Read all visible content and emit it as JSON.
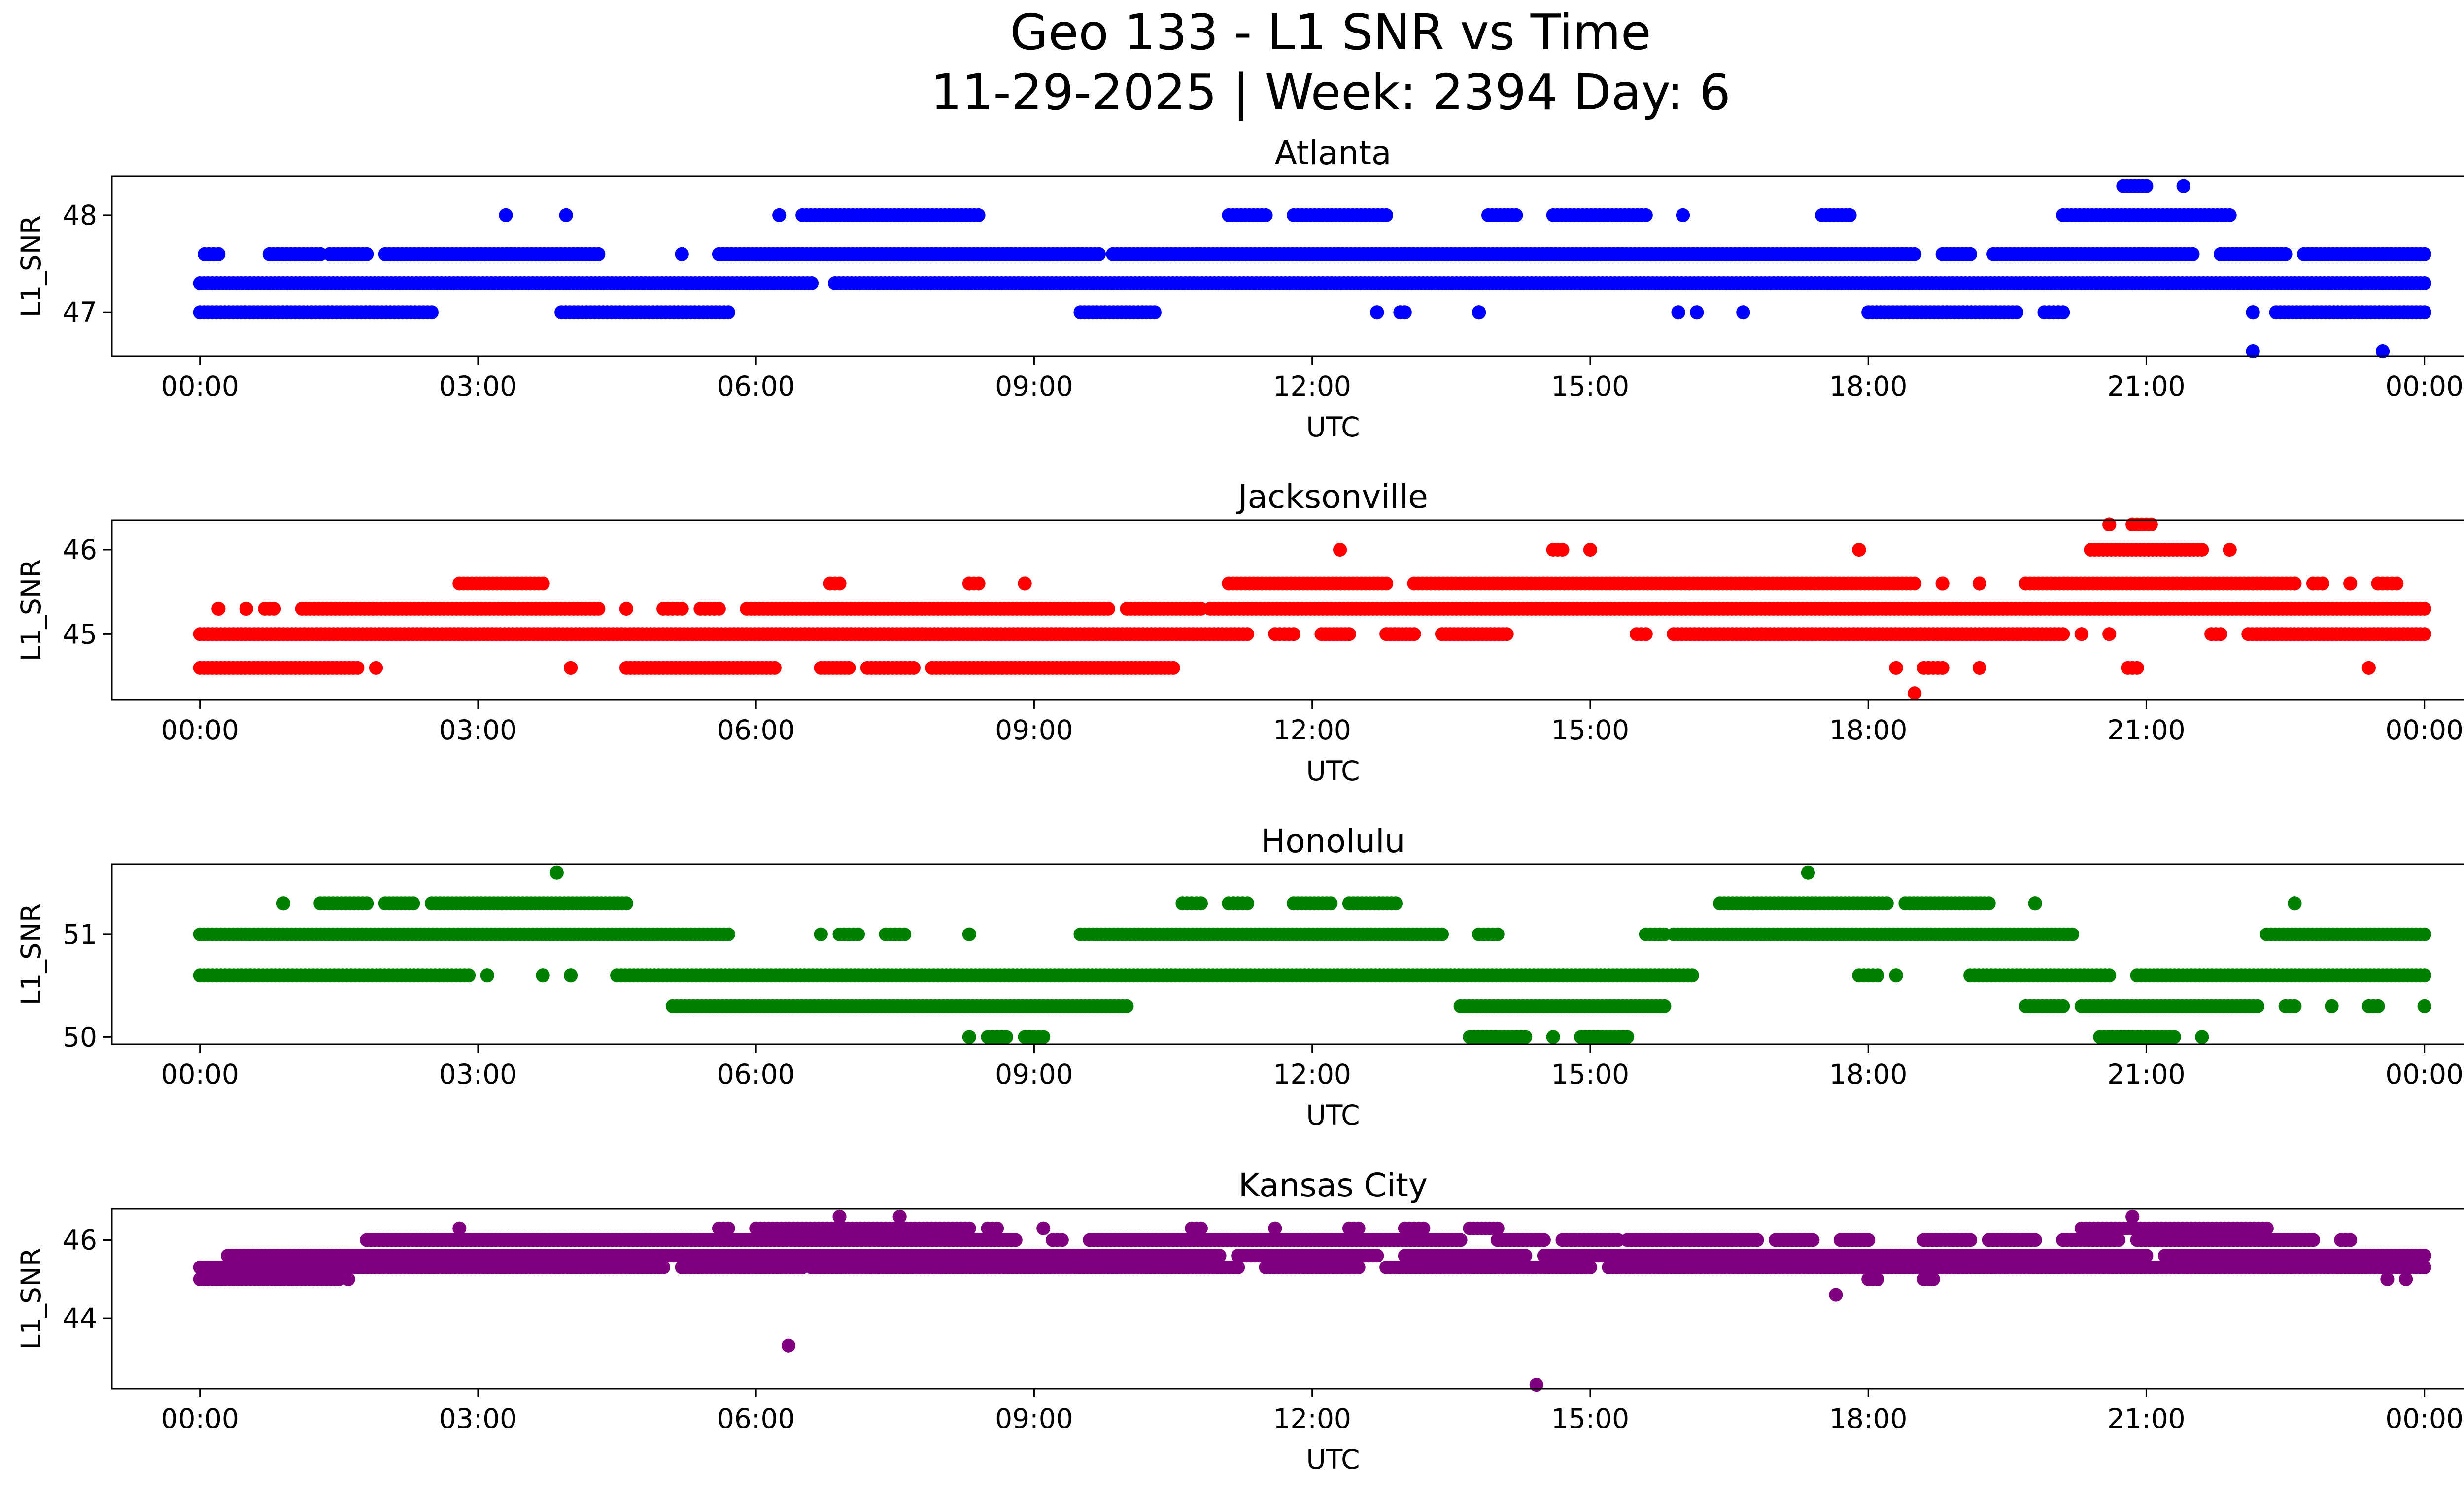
{
  "figure": {
    "title_line1": "Geo 133 - L1 SNR vs Time",
    "title_line2": "11-29-2025 | Week: 2394 Day: 6"
  },
  "chart_data": [
    {
      "type": "scatter",
      "title": "Atlanta",
      "xlabel": "UTC",
      "ylabel": "L1_SNR",
      "color": "#0000ff",
      "xlim_hours": [
        -0.95,
        25.4
      ],
      "ylim": [
        46.55,
        48.4
      ],
      "yticks": [
        47,
        48
      ],
      "xtick_labels": [
        "00:00",
        "03:00",
        "06:00",
        "09:00",
        "12:00",
        "15:00",
        "18:00",
        "21:00",
        "00:00"
      ],
      "levels": [
        {
          "y": 47.0,
          "segments": [
            [
              0.0,
              2.5
            ],
            [
              3.9,
              5.7
            ],
            [
              9.5,
              10.3
            ],
            [
              12.7,
              12.7
            ],
            [
              12.95,
              13.0
            ],
            [
              13.8,
              13.8
            ],
            [
              15.95,
              15.95
            ],
            [
              16.15,
              16.15
            ],
            [
              16.65,
              16.65
            ],
            [
              18.0,
              19.6
            ],
            [
              19.9,
              20.1
            ],
            [
              22.15,
              22.15
            ],
            [
              22.4,
              24.0
            ]
          ]
        },
        {
          "y": 47.3,
          "segments": [
            [
              0.0,
              6.6
            ],
            [
              6.85,
              24.0
            ]
          ]
        },
        {
          "y": 47.6,
          "segments": [
            [
              0.05,
              0.2
            ],
            [
              0.75,
              1.3
            ],
            [
              1.4,
              1.8
            ],
            [
              2.0,
              4.3
            ],
            [
              5.2,
              5.2
            ],
            [
              5.6,
              9.7
            ],
            [
              9.85,
              18.5
            ],
            [
              18.8,
              19.1
            ],
            [
              19.35,
              21.5
            ],
            [
              21.8,
              22.5
            ],
            [
              22.7,
              24.0
            ]
          ]
        },
        {
          "y": 48.0,
          "segments": [
            [
              3.3,
              3.3
            ],
            [
              3.95,
              3.95
            ],
            [
              6.25,
              6.25
            ],
            [
              6.5,
              8.4
            ],
            [
              11.1,
              11.5
            ],
            [
              11.8,
              12.8
            ],
            [
              13.9,
              14.2
            ],
            [
              14.6,
              15.6
            ],
            [
              16.0,
              16.0
            ],
            [
              17.5,
              17.8
            ],
            [
              20.1,
              21.9
            ]
          ]
        },
        {
          "y": 48.3,
          "segments": [
            [
              20.75,
              21.0
            ],
            [
              21.4,
              21.4
            ]
          ]
        },
        {
          "y": 46.6,
          "segments": [
            [
              22.15,
              22.15
            ],
            [
              23.55,
              23.55
            ]
          ]
        }
      ]
    },
    {
      "type": "scatter",
      "title": "Jacksonville",
      "xlabel": "UTC",
      "ylabel": "L1_SNR",
      "color": "#ff0000",
      "xlim_hours": [
        -0.95,
        25.4
      ],
      "ylim": [
        44.22,
        46.35
      ],
      "yticks": [
        45,
        46
      ],
      "xtick_labels": [
        "00:00",
        "03:00",
        "06:00",
        "09:00",
        "12:00",
        "15:00",
        "18:00",
        "21:00",
        "00:00"
      ],
      "levels": [
        {
          "y": 44.6,
          "segments": [
            [
              0.0,
              1.7
            ],
            [
              1.9,
              1.9
            ],
            [
              4.0,
              4.0
            ],
            [
              4.6,
              6.2
            ],
            [
              6.7,
              7.0
            ],
            [
              7.2,
              7.7
            ],
            [
              7.9,
              10.5
            ],
            [
              18.3,
              18.3
            ],
            [
              18.6,
              18.8
            ],
            [
              19.2,
              19.2
            ],
            [
              20.8,
              20.9
            ],
            [
              23.4,
              23.4
            ]
          ]
        },
        {
          "y": 44.3,
          "segments": [
            [
              18.5,
              18.5
            ]
          ]
        },
        {
          "y": 45.0,
          "segments": [
            [
              0.0,
              11.3
            ],
            [
              11.6,
              11.8
            ],
            [
              12.1,
              12.4
            ],
            [
              12.8,
              13.1
            ],
            [
              13.4,
              14.1
            ],
            [
              15.5,
              15.6
            ],
            [
              15.9,
              20.1
            ],
            [
              20.3,
              20.3
            ],
            [
              20.6,
              20.6
            ],
            [
              21.7,
              21.8
            ],
            [
              22.1,
              24.0
            ]
          ]
        },
        {
          "y": 45.3,
          "segments": [
            [
              0.2,
              0.2
            ],
            [
              0.5,
              0.5
            ],
            [
              0.7,
              0.8
            ],
            [
              1.1,
              4.3
            ],
            [
              4.6,
              4.6
            ],
            [
              5.0,
              5.2
            ],
            [
              5.4,
              5.6
            ],
            [
              5.9,
              9.8
            ],
            [
              10.0,
              10.8
            ],
            [
              10.9,
              24.0
            ]
          ]
        },
        {
          "y": 45.6,
          "segments": [
            [
              2.8,
              3.7
            ],
            [
              6.8,
              6.9
            ],
            [
              8.3,
              8.4
            ],
            [
              8.9,
              8.9
            ],
            [
              11.1,
              12.8
            ],
            [
              13.1,
              18.5
            ],
            [
              18.8,
              18.8
            ],
            [
              19.2,
              19.2
            ],
            [
              19.7,
              22.6
            ],
            [
              22.8,
              22.9
            ],
            [
              23.2,
              23.2
            ],
            [
              23.5,
              23.7
            ]
          ]
        },
        {
          "y": 46.0,
          "segments": [
            [
              12.3,
              12.3
            ],
            [
              14.6,
              14.7
            ],
            [
              15.0,
              15.0
            ],
            [
              17.9,
              17.9
            ],
            [
              20.4,
              21.6
            ],
            [
              21.9,
              21.9
            ]
          ]
        },
        {
          "y": 46.3,
          "segments": [
            [
              20.6,
              20.6
            ],
            [
              20.85,
              21.05
            ]
          ]
        }
      ]
    },
    {
      "type": "scatter",
      "title": "Honolulu",
      "xlabel": "UTC",
      "ylabel": "L1_SNR",
      "color": "#008000",
      "xlim_hours": [
        -0.95,
        25.4
      ],
      "ylim": [
        49.93,
        51.68
      ],
      "yticks": [
        50,
        51
      ],
      "xtick_labels": [
        "00:00",
        "03:00",
        "06:00",
        "09:00",
        "12:00",
        "15:00",
        "18:00",
        "21:00",
        "00:00"
      ],
      "levels": [
        {
          "y": 50.0,
          "segments": [
            [
              8.3,
              8.3
            ],
            [
              8.5,
              8.7
            ],
            [
              8.9,
              9.1
            ],
            [
              13.7,
              14.3
            ],
            [
              14.6,
              14.6
            ],
            [
              14.9,
              15.4
            ],
            [
              20.5,
              21.3
            ],
            [
              21.6,
              21.6
            ]
          ]
        },
        {
          "y": 50.3,
          "segments": [
            [
              5.1,
              10.0
            ],
            [
              13.6,
              15.8
            ],
            [
              19.7,
              20.1
            ],
            [
              20.3,
              22.2
            ],
            [
              22.5,
              22.6
            ],
            [
              23.0,
              23.0
            ],
            [
              23.4,
              23.5
            ],
            [
              24.0,
              24.0
            ]
          ]
        },
        {
          "y": 50.6,
          "segments": [
            [
              0.0,
              2.9
            ],
            [
              3.1,
              3.1
            ],
            [
              3.7,
              3.7
            ],
            [
              4.0,
              4.0
            ],
            [
              4.5,
              16.1
            ],
            [
              17.9,
              18.1
            ],
            [
              18.3,
              18.3
            ],
            [
              19.1,
              20.6
            ],
            [
              20.9,
              24.0
            ]
          ]
        },
        {
          "y": 51.0,
          "segments": [
            [
              0.0,
              5.7
            ],
            [
              6.7,
              6.7
            ],
            [
              6.9,
              7.1
            ],
            [
              7.4,
              7.6
            ],
            [
              8.3,
              8.3
            ],
            [
              9.5,
              13.4
            ],
            [
              13.8,
              14.0
            ],
            [
              15.6,
              15.8
            ],
            [
              15.9,
              20.2
            ],
            [
              22.3,
              24.0
            ]
          ]
        },
        {
          "y": 51.3,
          "segments": [
            [
              0.9,
              0.9
            ],
            [
              1.3,
              1.8
            ],
            [
              2.0,
              2.3
            ],
            [
              2.5,
              4.6
            ],
            [
              10.6,
              10.8
            ],
            [
              11.1,
              11.3
            ],
            [
              11.8,
              12.2
            ],
            [
              12.4,
              12.9
            ],
            [
              16.4,
              18.2
            ],
            [
              18.4,
              19.3
            ],
            [
              19.8,
              19.8
            ],
            [
              22.6,
              22.6
            ]
          ]
        },
        {
          "y": 51.6,
          "segments": [
            [
              3.85,
              3.85
            ],
            [
              17.35,
              17.35
            ]
          ]
        }
      ]
    },
    {
      "type": "scatter",
      "title": "Kansas City",
      "xlabel": "UTC",
      "ylabel": "L1_SNR",
      "color": "#800080",
      "xlim_hours": [
        -0.95,
        25.4
      ],
      "ylim": [
        42.2,
        46.8
      ],
      "yticks": [
        44,
        46
      ],
      "xtick_labels": [
        "00:00",
        "03:00",
        "06:00",
        "09:00",
        "12:00",
        "15:00",
        "18:00",
        "21:00",
        "00:00"
      ],
      "levels": [
        {
          "y": 45.0,
          "segments": [
            [
              0.0,
              1.5
            ],
            [
              1.6,
              1.6
            ],
            [
              18.0,
              18.1
            ],
            [
              18.6,
              18.7
            ],
            [
              23.6,
              23.6
            ],
            [
              23.8,
              23.8
            ]
          ]
        },
        {
          "y": 45.3,
          "segments": [
            [
              0.0,
              5.0
            ],
            [
              5.2,
              6.5
            ],
            [
              6.6,
              11.2
            ],
            [
              11.5,
              12.5
            ],
            [
              12.8,
              15.0
            ],
            [
              15.2,
              24.0
            ]
          ]
        },
        {
          "y": 45.6,
          "segments": [
            [
              0.3,
              11.0
            ],
            [
              11.2,
              12.7
            ],
            [
              13.0,
              14.3
            ],
            [
              14.5,
              21.0
            ],
            [
              21.2,
              24.0
            ]
          ]
        },
        {
          "y": 46.0,
          "segments": [
            [
              1.8,
              8.8
            ],
            [
              9.2,
              9.3
            ],
            [
              9.6,
              13.6
            ],
            [
              14.0,
              14.5
            ],
            [
              14.7,
              15.3
            ],
            [
              15.4,
              16.8
            ],
            [
              17.0,
              17.4
            ],
            [
              17.7,
              18.0
            ],
            [
              18.6,
              19.1
            ],
            [
              19.3,
              19.8
            ],
            [
              20.1,
              20.7
            ],
            [
              20.9,
              22.8
            ],
            [
              23.1,
              23.2
            ]
          ]
        },
        {
          "y": 46.3,
          "segments": [
            [
              2.8,
              2.8
            ],
            [
              5.6,
              5.7
            ],
            [
              6.0,
              8.3
            ],
            [
              8.5,
              8.6
            ],
            [
              9.1,
              9.1
            ],
            [
              10.7,
              10.8
            ],
            [
              11.6,
              11.6
            ],
            [
              12.4,
              12.5
            ],
            [
              13.0,
              13.2
            ],
            [
              13.7,
              14.0
            ],
            [
              20.3,
              22.3
            ]
          ]
        },
        {
          "y": 46.6,
          "segments": [
            [
              6.9,
              6.9
            ],
            [
              7.55,
              7.55
            ],
            [
              20.85,
              20.85
            ]
          ]
        },
        {
          "y": 44.6,
          "segments": [
            [
              17.65,
              17.65
            ]
          ]
        },
        {
          "y": 43.3,
          "segments": [
            [
              6.35,
              6.35
            ]
          ]
        },
        {
          "y": 42.3,
          "segments": [
            [
              14.42,
              14.42
            ]
          ]
        }
      ]
    }
  ]
}
